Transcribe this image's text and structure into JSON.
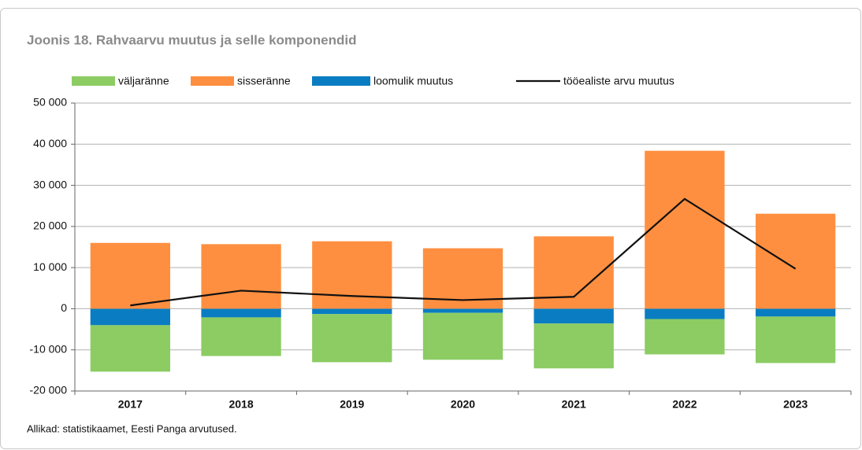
{
  "chart_data": {
    "type": "bar",
    "stacked": true,
    "title": "Joonis 18. Rahvaarvu muutus ja selle komponendid",
    "source": "Allikad: statistikaamet, Eesti Panga arvutused.",
    "categories": [
      "2017",
      "2018",
      "2019",
      "2020",
      "2021",
      "2022",
      "2023"
    ],
    "series": [
      {
        "name": "väljaränne",
        "color": "#8ccc63",
        "values": [
          -11300,
          -9400,
          -11700,
          -11400,
          -10900,
          -8600,
          -11300
        ]
      },
      {
        "name": "sisseränne",
        "color": "#ff8f40",
        "values": [
          16000,
          15700,
          16400,
          14700,
          17600,
          38400,
          23100
        ]
      },
      {
        "name": "loomulik muutus",
        "color": "#0a7dc2",
        "values": [
          -4000,
          -2100,
          -1300,
          -1000,
          -3600,
          -2500,
          -1900
        ]
      },
      {
        "name": "tööealiste arvu muutus",
        "color": "#111111",
        "type": "line",
        "values": [
          800,
          4400,
          3100,
          2100,
          2900,
          26700,
          9700
        ]
      }
    ],
    "ylim": [
      -20000,
      50000
    ],
    "yticks": [
      {
        "value": -20000,
        "label": "-20 000"
      },
      {
        "value": -10000,
        "label": "-10 000"
      },
      0,
      {
        "value": 10000,
        "label": "10 000"
      },
      {
        "value": 20000,
        "label": "20 000"
      },
      {
        "value": 30000,
        "label": "30 000"
      },
      {
        "value": 40000,
        "label": "40 000"
      },
      {
        "value": 50000,
        "label": "50 000"
      }
    ],
    "grid": true,
    "legend": "top"
  }
}
